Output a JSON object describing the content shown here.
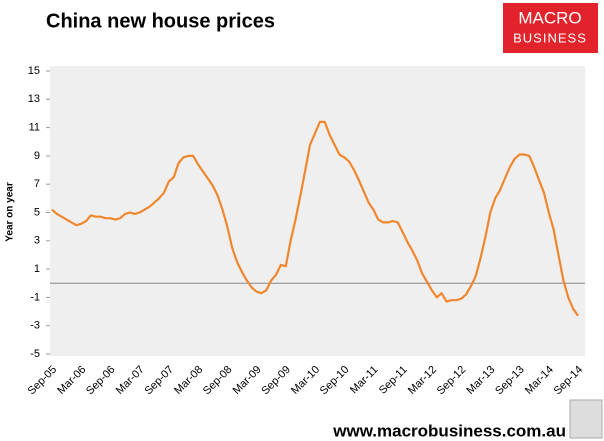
{
  "chart_data": {
    "type": "line",
    "title": "China new house prices",
    "y_label": "Year on year",
    "logo": {
      "top": "MACRO",
      "bottom": "BUSINESS"
    },
    "footer": "www.macrobusiness.com.au",
    "categories": [
      "Sep-05",
      null,
      null,
      null,
      null,
      null,
      "Mar-06",
      null,
      null,
      null,
      null,
      null,
      "Sep-06",
      null,
      null,
      null,
      null,
      null,
      "Mar-07",
      null,
      null,
      null,
      null,
      null,
      "Sep-07",
      null,
      null,
      null,
      null,
      null,
      "Mar-08",
      null,
      null,
      null,
      null,
      null,
      "Sep-08",
      null,
      null,
      null,
      null,
      null,
      "Mar-09",
      null,
      null,
      null,
      null,
      null,
      "Sep-09",
      null,
      null,
      null,
      null,
      null,
      "Mar-10",
      null,
      null,
      null,
      null,
      null,
      "Sep-10",
      null,
      null,
      null,
      null,
      null,
      "Mar-11",
      null,
      null,
      null,
      null,
      null,
      "Sep-11",
      null,
      null,
      null,
      null,
      null,
      "Mar-12",
      null,
      null,
      null,
      null,
      null,
      "Sep-12",
      null,
      null,
      null,
      null,
      null,
      "Mar-13",
      null,
      null,
      null,
      null,
      null,
      "Sep-13",
      null,
      null,
      null,
      null,
      null,
      "Mar-14",
      null,
      null,
      null,
      null,
      null,
      "Sep-14"
    ],
    "values": [
      5.2,
      4.9,
      4.7,
      4.5,
      4.3,
      4.1,
      4.2,
      4.4,
      4.8,
      4.7,
      4.7,
      4.6,
      4.6,
      4.5,
      4.6,
      4.9,
      5.0,
      4.9,
      5.0,
      5.2,
      5.4,
      5.7,
      6.0,
      6.4,
      7.2,
      7.5,
      8.5,
      8.9,
      9.0,
      9.0,
      8.4,
      7.9,
      7.4,
      6.9,
      6.2,
      5.2,
      4.0,
      2.5,
      1.5,
      0.8,
      0.2,
      -0.3,
      -0.6,
      -0.7,
      -0.5,
      0.2,
      0.6,
      1.3,
      1.2,
      3.0,
      4.5,
      6.2,
      8.0,
      9.8,
      10.6,
      11.4,
      11.4,
      10.5,
      9.8,
      9.1,
      8.9,
      8.6,
      8.0,
      7.3,
      6.5,
      5.7,
      5.2,
      4.5,
      4.3,
      4.3,
      4.4,
      4.3,
      3.6,
      2.9,
      2.3,
      1.6,
      0.7,
      0.1,
      -0.5,
      -1.0,
      -0.7,
      -1.3,
      -1.2,
      -1.2,
      -1.1,
      -0.8,
      -0.2,
      0.5,
      1.8,
      3.3,
      5.0,
      6.0,
      6.6,
      7.4,
      8.2,
      8.8,
      9.1,
      9.1,
      9.0,
      8.2,
      7.3,
      6.4,
      5.0,
      3.8,
      2.0,
      0.2,
      -1.0,
      -1.8,
      -2.3
    ],
    "color": "#f0872e",
    "ylim": [
      -5,
      15
    ],
    "yticks": [
      -5,
      -3,
      -1,
      1,
      3,
      5,
      7,
      9,
      11,
      13,
      15
    ],
    "grid": false
  }
}
